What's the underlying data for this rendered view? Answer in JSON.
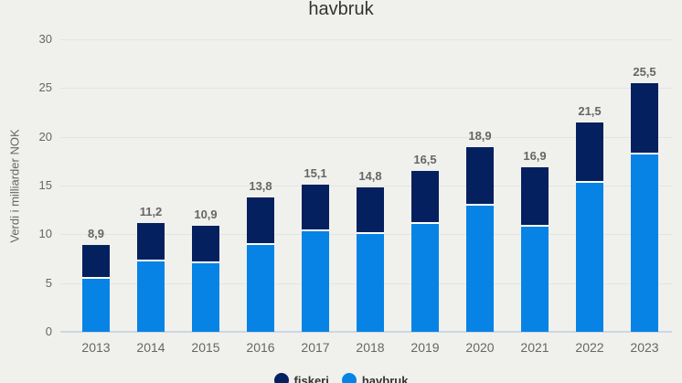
{
  "chart_data": {
    "type": "bar",
    "stacked": true,
    "title_visible": "havbruk",
    "ylabel": "Verdi i milliarder NOK",
    "ylim": [
      0,
      30
    ],
    "yticks": [
      0,
      5,
      10,
      15,
      20,
      25,
      30
    ],
    "grid": true,
    "legend_position": "bottom-center",
    "categories": [
      "2013",
      "2014",
      "2015",
      "2016",
      "2017",
      "2018",
      "2019",
      "2020",
      "2021",
      "2022",
      "2023"
    ],
    "series": [
      {
        "name": "fiskeri",
        "position": "top",
        "color": "#04205f",
        "values": [
          3.5,
          4.0,
          3.9,
          4.9,
          4.8,
          4.8,
          5.4,
          6.0,
          6.1,
          6.2,
          7.3
        ]
      },
      {
        "name": "havbruk",
        "position": "bottom",
        "color": "#0783e6",
        "values": [
          5.4,
          7.2,
          7.0,
          8.9,
          10.3,
          10.0,
          11.1,
          12.9,
          10.8,
          15.3,
          18.2
        ]
      }
    ],
    "total_labels": [
      "8,9",
      "11,2",
      "10,9",
      "13,8",
      "15,1",
      "14,8",
      "16,5",
      "18,9",
      "16,9",
      "21,5",
      "25,5"
    ],
    "colors": {
      "background": "#f0f1ed",
      "gridline": "#e3e5e0",
      "axis_line": "#ccd6e4",
      "tick_text": "#666666",
      "data_label_text": "#666666",
      "title_text": "#333333",
      "legend_text": "#333333"
    }
  }
}
